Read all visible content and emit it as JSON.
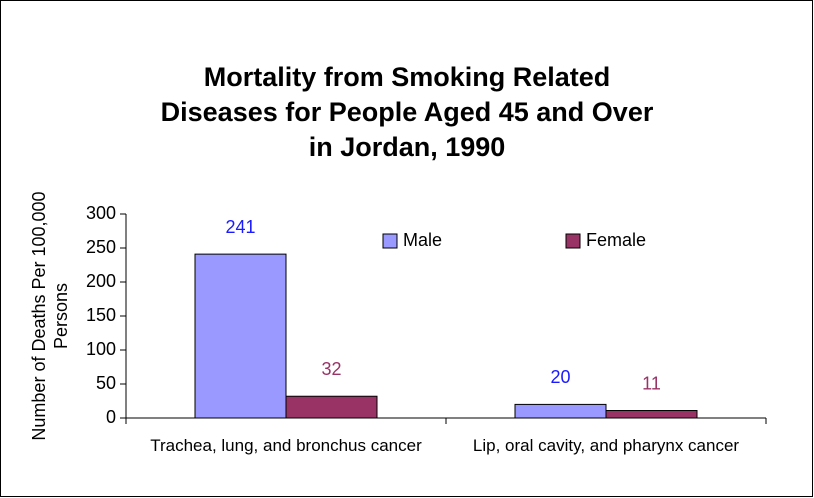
{
  "chart_data": {
    "type": "bar",
    "title": "Mortality from Smoking Related Diseases for People Aged 45 and Over in Jordan, 1990",
    "y_label": "Number of Deaths Per 100,000 Persons",
    "categories": [
      "Trachea, lung, and bronchus cancer",
      "Lip, oral cavity, and pharynx cancer"
    ],
    "series": [
      {
        "name": "Male",
        "color": "#9999ff",
        "label_color": "#1a1aff",
        "values": [
          241,
          20
        ]
      },
      {
        "name": "Female",
        "color": "#993366",
        "label_color": "#993366",
        "values": [
          32,
          11
        ]
      }
    ],
    "ylim": [
      0,
      300
    ],
    "yticks": [
      0,
      50,
      100,
      150,
      200,
      250,
      300
    ],
    "legend": "upper right"
  }
}
